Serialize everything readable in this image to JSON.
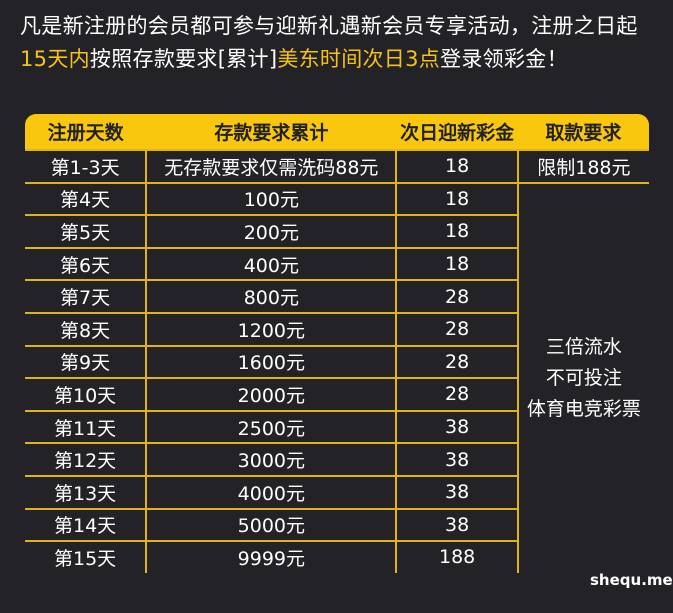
{
  "intro": {
    "part1": "凡是新注册的会员都可参与迎新礼遇新会员专享活动，注册之日起",
    "highlight1": "15天内",
    "part2": "按照存款要求[累计]",
    "highlight2": "美东时间次日3点",
    "part3": "登录领彩金！"
  },
  "colors": {
    "accent": "#f9c70e",
    "background": "#232327"
  },
  "table": {
    "headers": [
      "注册天数",
      "存款要求累计",
      "次日迎新彩金",
      "取款要求"
    ],
    "rows": [
      {
        "day": "第1-3天",
        "deposit": "无存款要求仅需洗码88元",
        "bonus": "18",
        "withdraw": "限制188元"
      },
      {
        "day": "第4天",
        "deposit": "100元",
        "bonus": "18"
      },
      {
        "day": "第5天",
        "deposit": "200元",
        "bonus": "18"
      },
      {
        "day": "第6天",
        "deposit": "400元",
        "bonus": "18"
      },
      {
        "day": "第7天",
        "deposit": "800元",
        "bonus": "28"
      },
      {
        "day": "第8天",
        "deposit": "1200元",
        "bonus": "28"
      },
      {
        "day": "第9天",
        "deposit": "1600元",
        "bonus": "28"
      },
      {
        "day": "第10天",
        "deposit": "2000元",
        "bonus": "28"
      },
      {
        "day": "第11天",
        "deposit": "2500元",
        "bonus": "38"
      },
      {
        "day": "第12天",
        "deposit": "3000元",
        "bonus": "38"
      },
      {
        "day": "第13天",
        "deposit": "4000元",
        "bonus": "38"
      },
      {
        "day": "第14天",
        "deposit": "5000元",
        "bonus": "38"
      },
      {
        "day": "第15天",
        "deposit": "9999元",
        "bonus": "188"
      }
    ],
    "merged_withdraw": [
      "三倍流水",
      "不可投注",
      "体育电竞彩票"
    ]
  },
  "watermark": "shequ.me"
}
